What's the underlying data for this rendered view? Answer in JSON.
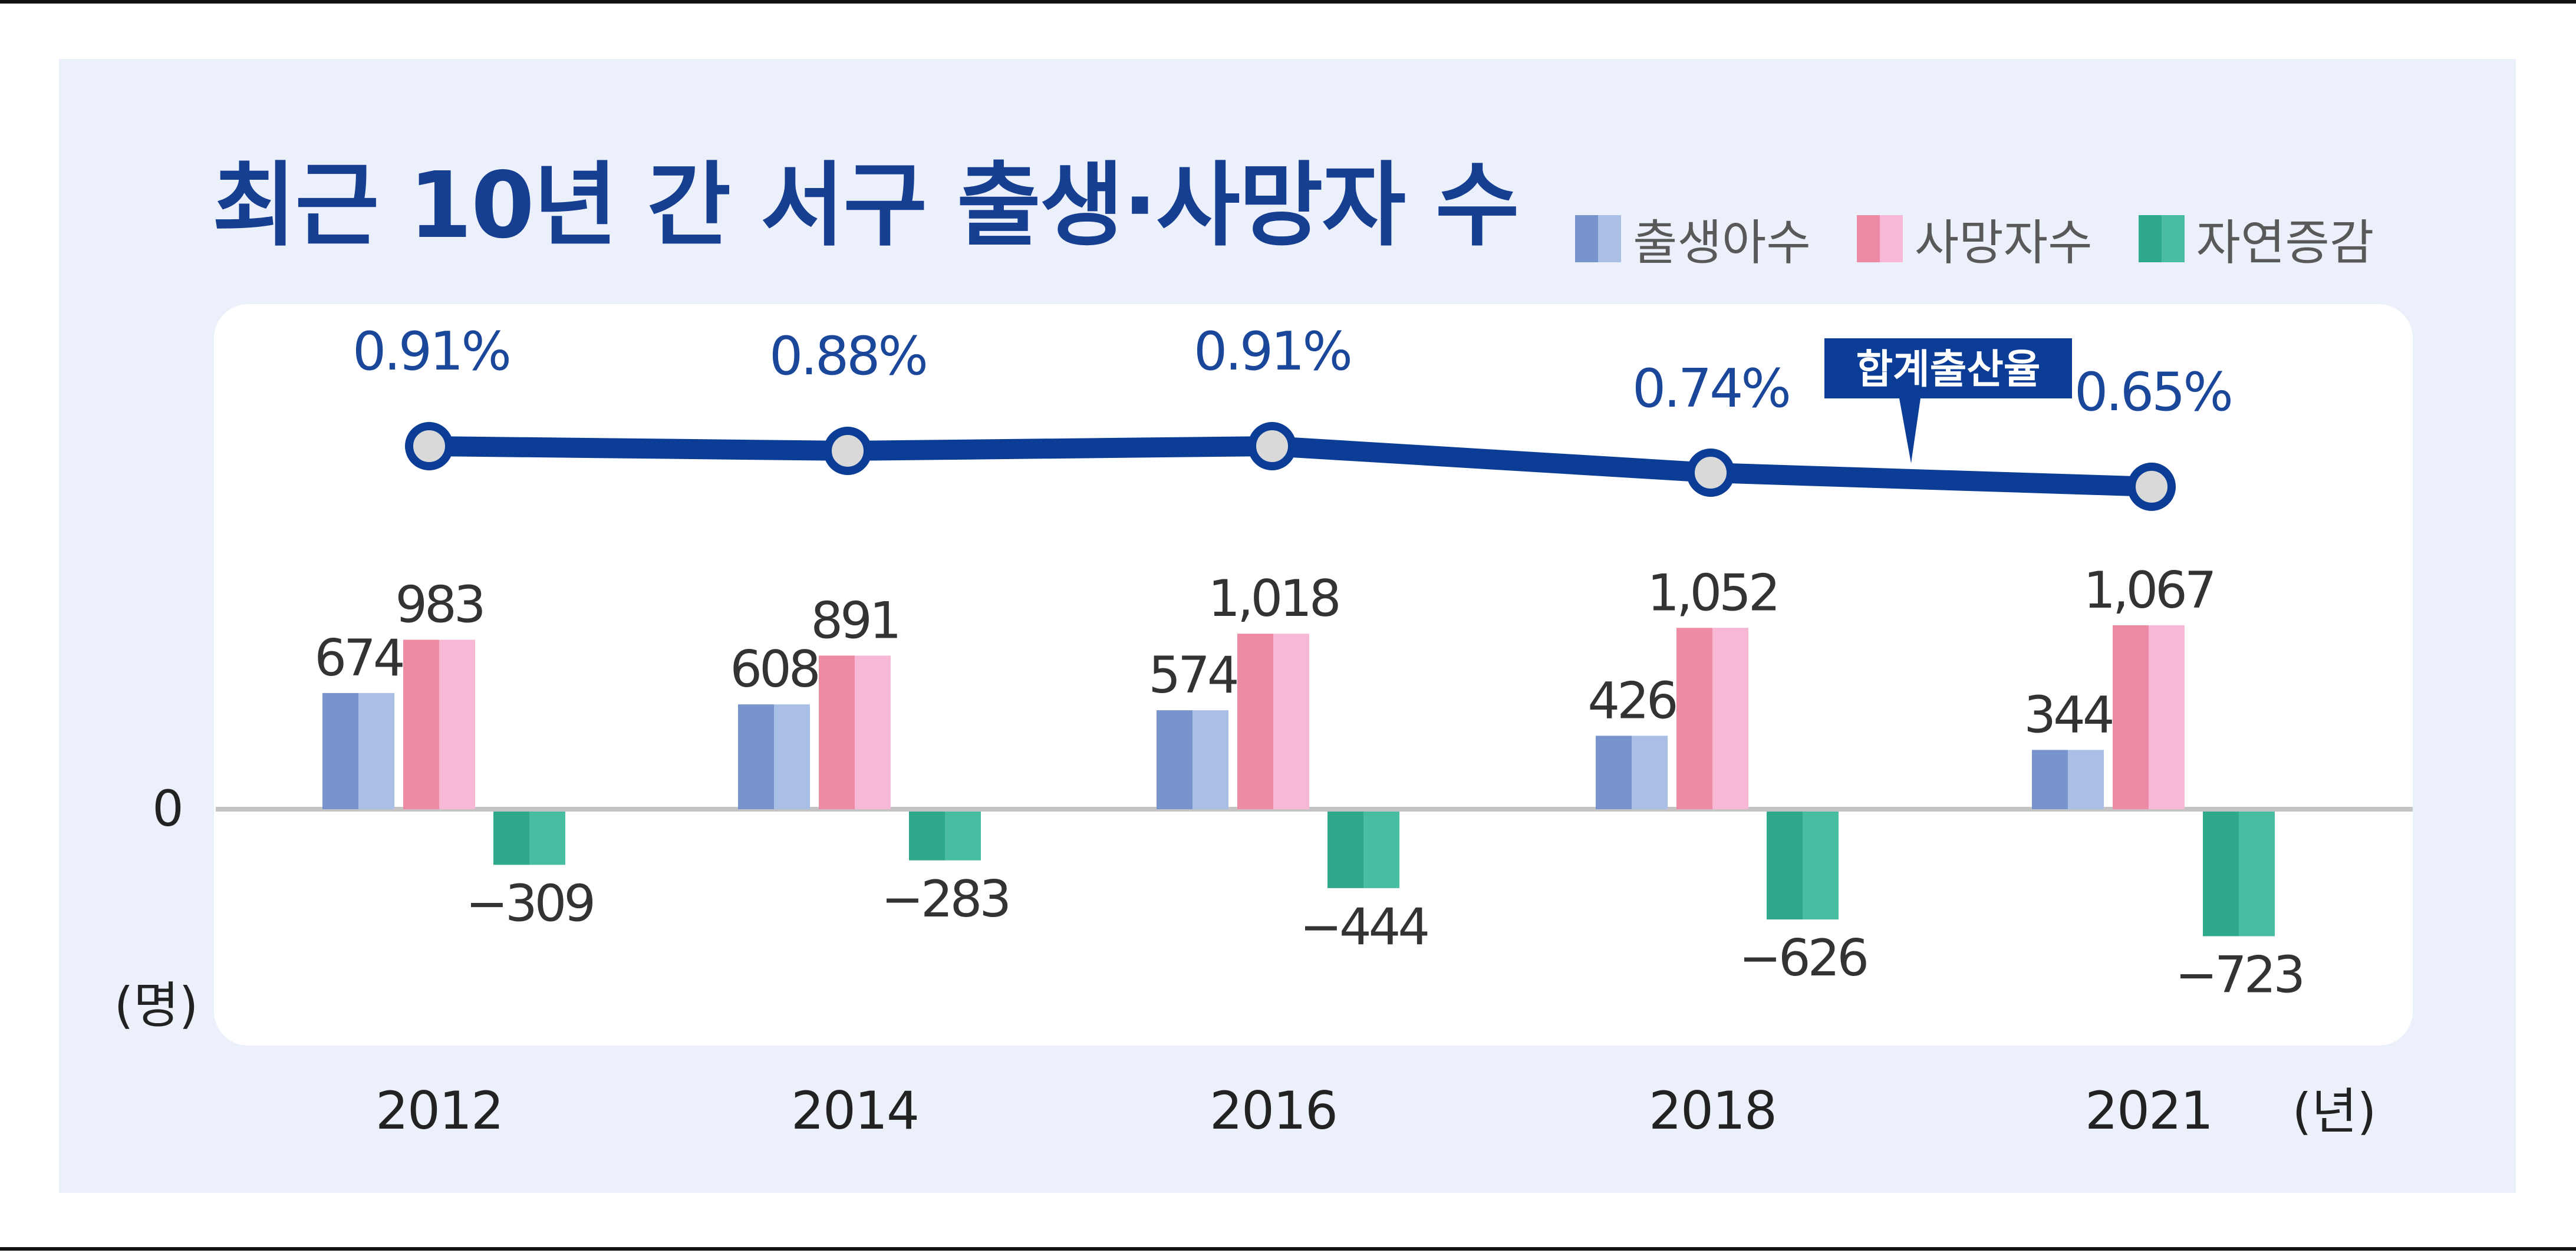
{
  "title": "최근 10년 간 서구 출생·사망자 수",
  "legend": [
    {
      "label": "출생아수",
      "colors": [
        "#7794cc",
        "#a9bfe6"
      ]
    },
    {
      "label": "사망자수",
      "colors": [
        "#ee8aa3",
        "#f6b8d4"
      ]
    },
    {
      "label": "자연증감",
      "colors": [
        "#2fa98c",
        "#48bda1"
      ]
    }
  ],
  "chart_data": {
    "type": "bar",
    "categories": [
      "2012",
      "2014",
      "2016",
      "2018",
      "2021"
    ],
    "series": [
      {
        "name": "출생아수",
        "values": [
          674,
          608,
          574,
          426,
          344
        ],
        "labels": [
          "674",
          "608",
          "574",
          "426",
          "344"
        ]
      },
      {
        "name": "사망자수",
        "values": [
          983,
          891,
          1018,
          1052,
          1067
        ],
        "labels": [
          "983",
          "891",
          "1,018",
          "1,052",
          "1,067"
        ]
      },
      {
        "name": "자연증감",
        "values": [
          -309,
          -283,
          -444,
          -626,
          -723
        ],
        "labels": [
          "−309",
          "−283",
          "−444",
          "−626",
          "−723"
        ]
      }
    ],
    "line_series": {
      "name": "합계출산율",
      "values": [
        0.91,
        0.88,
        0.91,
        0.74,
        0.65
      ],
      "labels": [
        "0.91%",
        "0.88%",
        "0.91%",
        "0.74%",
        "0.65%"
      ]
    },
    "zero_label": "0",
    "y_unit": "(명)",
    "x_unit": "(년)",
    "colors": {
      "line": "#0b3d96",
      "marker_fill": "#d9d9d9",
      "baseline": "#c4c4c4"
    }
  }
}
